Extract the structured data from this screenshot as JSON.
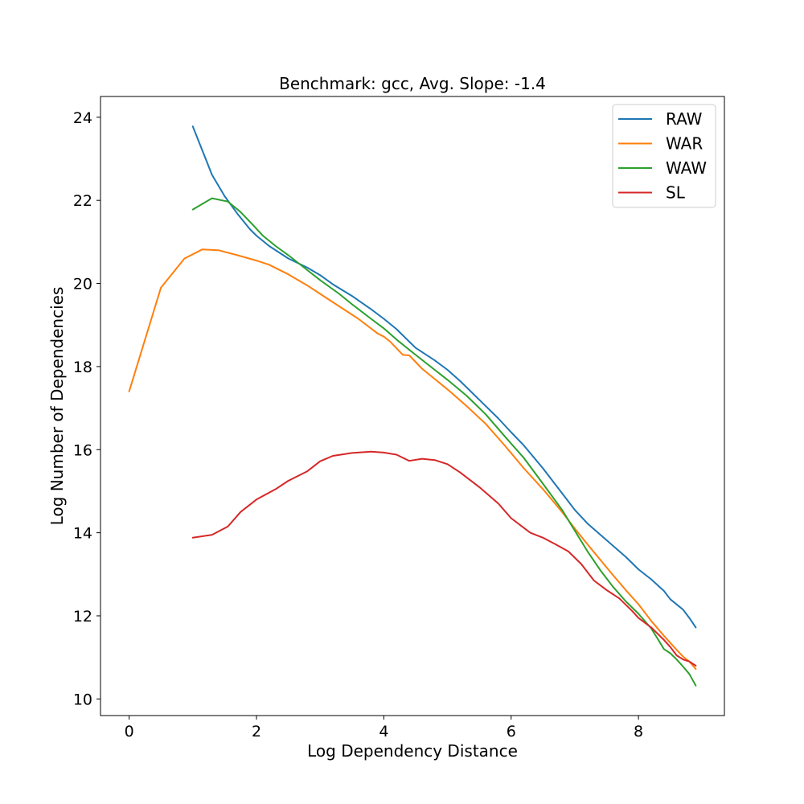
{
  "chart_data": {
    "type": "line",
    "title": "Benchmark: gcc, Avg. Slope: -1.4",
    "xlabel": "Log Dependency Distance",
    "ylabel": "Log Number of Dependencies",
    "xlim": [
      -0.45,
      9.35
    ],
    "ylim": [
      9.6,
      24.5
    ],
    "xticks": [
      0,
      2,
      4,
      6,
      8
    ],
    "yticks": [
      10,
      12,
      14,
      16,
      18,
      20,
      22,
      24
    ],
    "legend_position": "top-right",
    "series": [
      {
        "name": "RAW",
        "color": "#1f77b4",
        "points": [
          [
            1.0,
            23.78
          ],
          [
            1.15,
            23.2
          ],
          [
            1.3,
            22.62
          ],
          [
            1.5,
            22.1
          ],
          [
            1.7,
            21.68
          ],
          [
            1.9,
            21.3
          ],
          [
            2.0,
            21.15
          ],
          [
            2.2,
            20.9
          ],
          [
            2.5,
            20.6
          ],
          [
            2.8,
            20.38
          ],
          [
            3.0,
            20.2
          ],
          [
            3.2,
            19.98
          ],
          [
            3.5,
            19.7
          ],
          [
            3.8,
            19.38
          ],
          [
            4.0,
            19.15
          ],
          [
            4.2,
            18.9
          ],
          [
            4.4,
            18.6
          ],
          [
            4.5,
            18.45
          ],
          [
            4.8,
            18.15
          ],
          [
            5.0,
            17.92
          ],
          [
            5.2,
            17.65
          ],
          [
            5.5,
            17.2
          ],
          [
            5.8,
            16.75
          ],
          [
            6.0,
            16.42
          ],
          [
            6.2,
            16.1
          ],
          [
            6.5,
            15.55
          ],
          [
            6.8,
            14.95
          ],
          [
            7.0,
            14.55
          ],
          [
            7.2,
            14.22
          ],
          [
            7.5,
            13.82
          ],
          [
            7.8,
            13.42
          ],
          [
            8.0,
            13.12
          ],
          [
            8.2,
            12.88
          ],
          [
            8.4,
            12.6
          ],
          [
            8.5,
            12.4
          ],
          [
            8.7,
            12.15
          ],
          [
            8.8,
            11.95
          ],
          [
            8.9,
            11.72
          ]
        ]
      },
      {
        "name": "WAR",
        "color": "#ff7f0e",
        "points": [
          [
            0.0,
            17.4
          ],
          [
            0.5,
            19.9
          ],
          [
            0.87,
            20.6
          ],
          [
            1.15,
            20.82
          ],
          [
            1.4,
            20.8
          ],
          [
            1.7,
            20.68
          ],
          [
            2.0,
            20.55
          ],
          [
            2.2,
            20.45
          ],
          [
            2.5,
            20.22
          ],
          [
            2.8,
            19.95
          ],
          [
            3.0,
            19.75
          ],
          [
            3.3,
            19.45
          ],
          [
            3.6,
            19.15
          ],
          [
            3.9,
            18.8
          ],
          [
            4.0,
            18.72
          ],
          [
            4.1,
            18.6
          ],
          [
            4.3,
            18.28
          ],
          [
            4.4,
            18.27
          ],
          [
            4.6,
            17.95
          ],
          [
            4.8,
            17.7
          ],
          [
            5.0,
            17.45
          ],
          [
            5.3,
            17.05
          ],
          [
            5.6,
            16.62
          ],
          [
            5.9,
            16.1
          ],
          [
            6.2,
            15.55
          ],
          [
            6.5,
            15.05
          ],
          [
            6.8,
            14.5
          ],
          [
            7.0,
            14.1
          ],
          [
            7.2,
            13.72
          ],
          [
            7.4,
            13.35
          ],
          [
            7.6,
            12.98
          ],
          [
            7.8,
            12.62
          ],
          [
            8.0,
            12.28
          ],
          [
            8.2,
            11.88
          ],
          [
            8.4,
            11.52
          ],
          [
            8.5,
            11.35
          ],
          [
            8.6,
            11.18
          ],
          [
            8.7,
            11.02
          ],
          [
            8.8,
            10.9
          ],
          [
            8.9,
            10.72
          ]
        ]
      },
      {
        "name": "WAW",
        "color": "#2ca02c",
        "points": [
          [
            1.0,
            21.78
          ],
          [
            1.3,
            22.05
          ],
          [
            1.55,
            21.97
          ],
          [
            1.75,
            21.72
          ],
          [
            1.95,
            21.4
          ],
          [
            2.1,
            21.15
          ],
          [
            2.3,
            20.9
          ],
          [
            2.5,
            20.68
          ],
          [
            2.8,
            20.32
          ],
          [
            3.0,
            20.08
          ],
          [
            3.3,
            19.75
          ],
          [
            3.5,
            19.5
          ],
          [
            3.8,
            19.15
          ],
          [
            4.0,
            18.92
          ],
          [
            4.2,
            18.65
          ],
          [
            4.5,
            18.28
          ],
          [
            4.8,
            17.92
          ],
          [
            5.0,
            17.68
          ],
          [
            5.3,
            17.3
          ],
          [
            5.6,
            16.85
          ],
          [
            5.9,
            16.32
          ],
          [
            6.2,
            15.8
          ],
          [
            6.5,
            15.18
          ],
          [
            6.8,
            14.55
          ],
          [
            7.0,
            14.05
          ],
          [
            7.2,
            13.55
          ],
          [
            7.4,
            13.1
          ],
          [
            7.6,
            12.7
          ],
          [
            7.8,
            12.35
          ],
          [
            8.0,
            12.05
          ],
          [
            8.2,
            11.7
          ],
          [
            8.3,
            11.45
          ],
          [
            8.4,
            11.2
          ],
          [
            8.5,
            11.1
          ],
          [
            8.6,
            10.95
          ],
          [
            8.7,
            10.78
          ],
          [
            8.8,
            10.6
          ],
          [
            8.9,
            10.32
          ]
        ]
      },
      {
        "name": "SL",
        "color": "#d62728",
        "points": [
          [
            1.0,
            13.88
          ],
          [
            1.3,
            13.95
          ],
          [
            1.55,
            14.15
          ],
          [
            1.75,
            14.5
          ],
          [
            2.0,
            14.8
          ],
          [
            2.3,
            15.05
          ],
          [
            2.5,
            15.25
          ],
          [
            2.8,
            15.48
          ],
          [
            3.0,
            15.72
          ],
          [
            3.2,
            15.85
          ],
          [
            3.5,
            15.92
          ],
          [
            3.8,
            15.95
          ],
          [
            4.0,
            15.93
          ],
          [
            4.2,
            15.88
          ],
          [
            4.4,
            15.73
          ],
          [
            4.6,
            15.78
          ],
          [
            4.8,
            15.75
          ],
          [
            5.0,
            15.65
          ],
          [
            5.2,
            15.45
          ],
          [
            5.5,
            15.1
          ],
          [
            5.8,
            14.7
          ],
          [
            6.0,
            14.35
          ],
          [
            6.3,
            14.0
          ],
          [
            6.5,
            13.88
          ],
          [
            6.7,
            13.72
          ],
          [
            6.9,
            13.55
          ],
          [
            7.1,
            13.25
          ],
          [
            7.3,
            12.85
          ],
          [
            7.5,
            12.62
          ],
          [
            7.7,
            12.42
          ],
          [
            7.9,
            12.12
          ],
          [
            8.0,
            11.95
          ],
          [
            8.2,
            11.72
          ],
          [
            8.4,
            11.42
          ],
          [
            8.5,
            11.25
          ],
          [
            8.6,
            11.05
          ],
          [
            8.7,
            10.95
          ],
          [
            8.8,
            10.9
          ],
          [
            8.9,
            10.8
          ]
        ]
      }
    ]
  }
}
